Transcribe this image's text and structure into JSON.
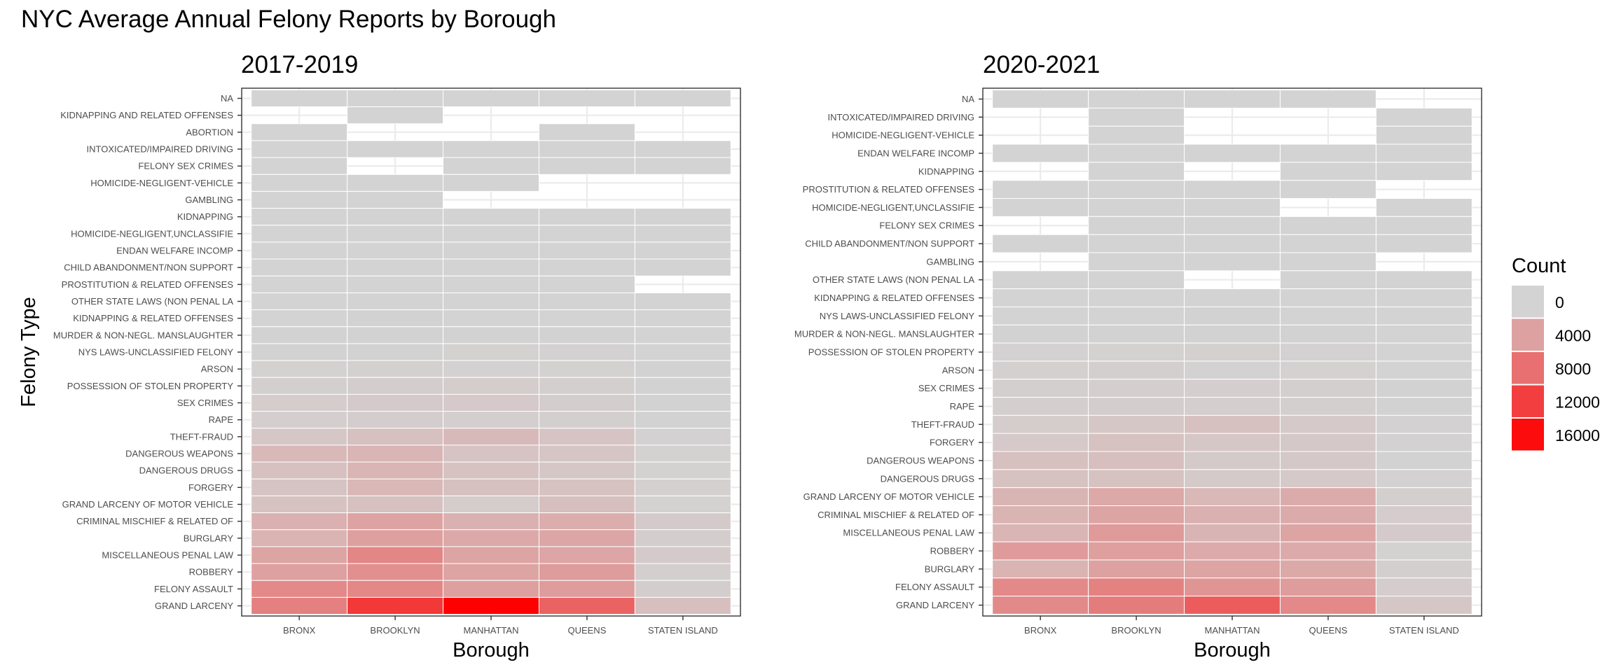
{
  "title": "NYC Average Annual Felony Reports by Borough",
  "chart_data": [
    {
      "type": "heatmap",
      "title": "2017-2019",
      "xlabel": "Borough",
      "ylabel": "Felony Type",
      "categories": [
        "BRONX",
        "BROOKLYN",
        "MANHATTAN",
        "QUEENS",
        "STATEN ISLAND"
      ],
      "rows": [
        "NA",
        "KIDNAPPING AND RELATED OFFENSES",
        "ABORTION",
        "INTOXICATED/IMPAIRED DRIVING",
        "FELONY SEX CRIMES",
        "HOMICIDE-NEGLIGENT-VEHICLE",
        "GAMBLING",
        "KIDNAPPING",
        "HOMICIDE-NEGLIGENT,UNCLASSIFIE",
        "ENDAN WELFARE INCOMP",
        "CHILD ABANDONMENT/NON SUPPORT",
        "PROSTITUTION & RELATED OFFENSES",
        "OTHER STATE LAWS (NON PENAL LA",
        "KIDNAPPING & RELATED OFFENSES",
        "MURDER & NON-NEGL. MANSLAUGHTER",
        "NYS LAWS-UNCLASSIFIED FELONY",
        "ARSON",
        "POSSESSION OF STOLEN PROPERTY",
        "SEX CRIMES",
        "RAPE",
        "THEFT-FRAUD",
        "DANGEROUS WEAPONS",
        "DANGEROUS DRUGS",
        "FORGERY",
        "GRAND LARCENY OF MOTOR VEHICLE",
        "CRIMINAL MISCHIEF & RELATED OF",
        "BURGLARY",
        "MISCELLANEOUS PENAL LAW",
        "ROBBERY",
        "FELONY ASSAULT",
        "GRAND LARCENY"
      ],
      "values": [
        [
          1,
          1,
          1,
          1,
          1
        ],
        [
          null,
          1,
          null,
          null,
          null
        ],
        [
          1,
          null,
          null,
          1,
          null
        ],
        [
          1,
          1,
          1,
          1,
          1
        ],
        [
          1,
          null,
          1,
          1,
          1
        ],
        [
          1,
          1,
          1,
          null,
          null
        ],
        [
          1,
          1,
          null,
          null,
          null
        ],
        [
          1,
          1,
          1,
          1,
          1
        ],
        [
          2,
          2,
          2,
          2,
          1
        ],
        [
          4,
          3,
          3,
          3,
          2
        ],
        [
          12,
          8,
          10,
          10,
          3
        ],
        [
          15,
          20,
          30,
          25,
          null
        ],
        [
          20,
          20,
          20,
          20,
          10
        ],
        [
          40,
          50,
          40,
          40,
          10
        ],
        [
          120,
          110,
          60,
          80,
          10
        ],
        [
          100,
          100,
          200,
          150,
          20
        ],
        [
          200,
          270,
          130,
          200,
          50
        ],
        [
          300,
          500,
          600,
          350,
          50
        ],
        [
          600,
          700,
          800,
          500,
          60
        ],
        [
          400,
          450,
          300,
          350,
          50
        ],
        [
          1000,
          1500,
          2100,
          1200,
          150
        ],
        [
          2200,
          2400,
          1200,
          1100,
          200
        ],
        [
          1500,
          2400,
          1400,
          1000,
          200
        ],
        [
          1300,
          2200,
          1500,
          1400,
          250
        ],
        [
          1400,
          1500,
          600,
          1600,
          200
        ],
        [
          2800,
          3900,
          2700,
          3100,
          700
        ],
        [
          2600,
          4200,
          3500,
          3600,
          500
        ],
        [
          3800,
          6200,
          3800,
          3700,
          700
        ],
        [
          4100,
          5500,
          3800,
          4400,
          350
        ],
        [
          6000,
          6100,
          4200,
          4400,
          500
        ],
        [
          6700,
          12500,
          17000,
          9000,
          1600
        ]
      ]
    },
    {
      "type": "heatmap",
      "title": "2020-2021",
      "xlabel": "Borough",
      "ylabel": "",
      "categories": [
        "BRONX",
        "BROOKLYN",
        "MANHATTAN",
        "QUEENS",
        "STATEN ISLAND"
      ],
      "rows": [
        "NA",
        "INTOXICATED/IMPAIRED DRIVING",
        "HOMICIDE-NEGLIGENT-VEHICLE",
        "ENDAN WELFARE INCOMP",
        "KIDNAPPING",
        "PROSTITUTION & RELATED OFFENSES",
        "HOMICIDE-NEGLIGENT,UNCLASSIFIE",
        "FELONY SEX CRIMES",
        "CHILD ABANDONMENT/NON SUPPORT",
        "GAMBLING",
        "OTHER STATE LAWS (NON PENAL LA",
        "KIDNAPPING & RELATED OFFENSES",
        "NYS LAWS-UNCLASSIFIED FELONY",
        "MURDER & NON-NEGL. MANSLAUGHTER",
        "POSSESSION OF STOLEN PROPERTY",
        "ARSON",
        "SEX CRIMES",
        "RAPE",
        "THEFT-FRAUD",
        "FORGERY",
        "DANGEROUS WEAPONS",
        "DANGEROUS DRUGS",
        "GRAND LARCENY OF MOTOR VEHICLE",
        "CRIMINAL MISCHIEF & RELATED OF",
        "MISCELLANEOUS PENAL LAW",
        "ROBBERY",
        "BURGLARY",
        "FELONY ASSAULT",
        "GRAND LARCENY"
      ],
      "values": [
        [
          1,
          1,
          1,
          1,
          null
        ],
        [
          null,
          1,
          null,
          null,
          1
        ],
        [
          null,
          1,
          null,
          null,
          1
        ],
        [
          1,
          1,
          1,
          1,
          1
        ],
        [
          null,
          1,
          null,
          1,
          1
        ],
        [
          1,
          1,
          1,
          1,
          null
        ],
        [
          1,
          1,
          1,
          null,
          1
        ],
        [
          null,
          1,
          1,
          1,
          1
        ],
        [
          1,
          1,
          1,
          1,
          1
        ],
        [
          null,
          1,
          1,
          1,
          null
        ],
        [
          5,
          5,
          null,
          5,
          2
        ],
        [
          20,
          25,
          20,
          15,
          5
        ],
        [
          30,
          40,
          60,
          40,
          10
        ],
        [
          110,
          110,
          50,
          60,
          10
        ],
        [
          150,
          200,
          250,
          150,
          20
        ],
        [
          250,
          300,
          150,
          200,
          40
        ],
        [
          300,
          400,
          400,
          300,
          50
        ],
        [
          400,
          500,
          400,
          300,
          50
        ],
        [
          600,
          1000,
          1500,
          800,
          150
        ],
        [
          800,
          1400,
          1000,
          900,
          150
        ],
        [
          1500,
          1600,
          700,
          900,
          100
        ],
        [
          1400,
          1400,
          700,
          800,
          150
        ],
        [
          2500,
          3500,
          2200,
          3200,
          300
        ],
        [
          2600,
          3800,
          2800,
          3200,
          600
        ],
        [
          2400,
          4600,
          2500,
          3800,
          700
        ],
        [
          4500,
          4200,
          3300,
          3300,
          200
        ],
        [
          2600,
          4000,
          3800,
          3400,
          300
        ],
        [
          6000,
          6500,
          5000,
          4400,
          600
        ],
        [
          5900,
          7000,
          9600,
          6000,
          1000
        ]
      ]
    }
  ],
  "legend": {
    "title": "Count",
    "breaks": [
      "0",
      "4000",
      "8000",
      "12000",
      "16000"
    ],
    "break_values": [
      0,
      4000,
      8000,
      12000,
      16000
    ],
    "range": [
      0,
      17000
    ]
  },
  "colors": {
    "low": "#d3d3d3",
    "high": "#ff0000",
    "na_fill": "#ffffff",
    "grid": "#ebebeb",
    "text": "#4d4d4d"
  }
}
